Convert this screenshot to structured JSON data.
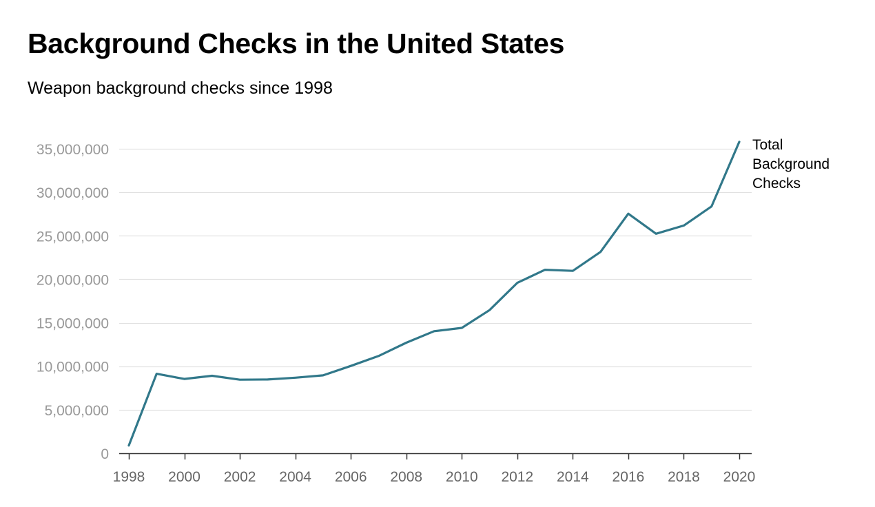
{
  "title": "Background Checks in the United States",
  "subtitle": "Weapon background checks since 1998",
  "chart_data": {
    "type": "line",
    "title": "Background Checks in the United States",
    "subtitle": "Weapon background checks since 1998",
    "xlabel": "",
    "ylabel": "",
    "x": [
      1998,
      1999,
      2000,
      2001,
      2002,
      2003,
      2004,
      2005,
      2006,
      2007,
      2008,
      2009,
      2010,
      2011,
      2012,
      2013,
      2014,
      2015,
      2016,
      2017,
      2018,
      2019,
      2020
    ],
    "series": [
      {
        "name": "Total Background Checks",
        "label_lines": [
          "Total",
          "Background",
          "Checks"
        ],
        "color": "#31788a",
        "values": [
          892840,
          9138123,
          8543037,
          8910191,
          8454322,
          8481588,
          8687671,
          8952945,
          10036933,
          11177374,
          12709023,
          14033824,
          14409616,
          16454951,
          19592303,
          21093273,
          20968547,
          23141970,
          27538673,
          25235215,
          26181936,
          28369750,
          35800000
        ]
      }
    ],
    "ylim": [
      0,
      35000000
    ],
    "xlim": [
      1998,
      2020
    ],
    "yticks": [
      {
        "value": 0,
        "label": "0"
      },
      {
        "value": 5000000,
        "label": "5,000,000"
      },
      {
        "value": 10000000,
        "label": "10,000,000"
      },
      {
        "value": 15000000,
        "label": "15,000,000"
      },
      {
        "value": 20000000,
        "label": "20,000,000"
      },
      {
        "value": 25000000,
        "label": "25,000,000"
      },
      {
        "value": 30000000,
        "label": "30,000,000"
      },
      {
        "value": 35000000,
        "label": "35,000,000"
      }
    ],
    "xticks": [
      {
        "value": 1998,
        "label": "1998"
      },
      {
        "value": 2000,
        "label": "2000"
      },
      {
        "value": 2002,
        "label": "2002"
      },
      {
        "value": 2004,
        "label": "2004"
      },
      {
        "value": 2006,
        "label": "2006"
      },
      {
        "value": 2008,
        "label": "2008"
      },
      {
        "value": 2010,
        "label": "2010"
      },
      {
        "value": 2012,
        "label": "2012"
      },
      {
        "value": 2014,
        "label": "2014"
      },
      {
        "value": 2016,
        "label": "2016"
      },
      {
        "value": 2018,
        "label": "2018"
      },
      {
        "value": 2020,
        "label": "2020"
      }
    ],
    "grid": true,
    "legend": "direct-label-right",
    "colors": {
      "line": "#31788a",
      "grid": "#e1e1e1",
      "axis": "#333333",
      "ytick_text": "#999999",
      "xtick_text": "#666666"
    }
  }
}
